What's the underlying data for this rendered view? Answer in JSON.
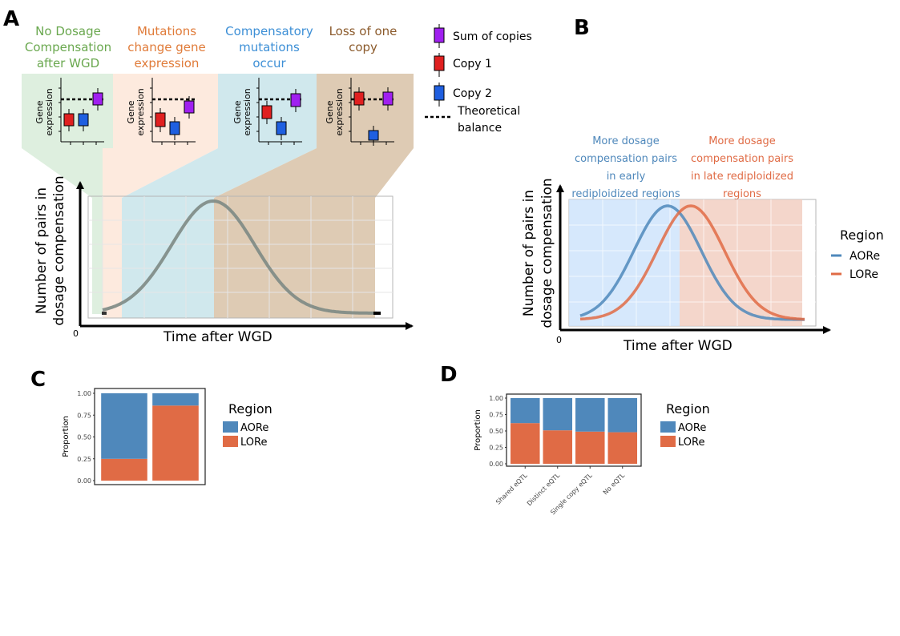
{
  "colors": {
    "green": "#6aa84f",
    "orange": "#e07b39",
    "blue": "#3d8fd6",
    "brown": "#8b5a2b",
    "purple": "#a020f0",
    "red": "#e02020",
    "cblue": "#1f5fe0",
    "aore": "#4f88bb",
    "lore": "#e06b45"
  },
  "panel_a": {
    "letter": "A",
    "headers": [
      {
        "lines": [
          "No Dosage",
          "Compensation",
          "after WGD"
        ],
        "color": "#6aa84f"
      },
      {
        "lines": [
          "Mutations",
          "change gene",
          "expression"
        ],
        "color": "#e07b39"
      },
      {
        "lines": [
          "Compensatory",
          "mutations",
          "occur"
        ],
        "color": "#3d8fd6"
      },
      {
        "lines": [
          "Loss of one",
          "copy"
        ],
        "color": "#8b5a2b"
      }
    ],
    "gene_expression_label": [
      "Gene",
      "expression"
    ],
    "legend": {
      "sum": "Sum of copies",
      "copy1": "Copy 1",
      "copy2": "Copy 2",
      "balance": [
        "Theoretical",
        "balance"
      ]
    },
    "ylabel": [
      "Number of pairs in",
      "dosage compensation"
    ],
    "xlabel": "Time after WGD",
    "origin": "0"
  },
  "panel_b": {
    "letter": "B",
    "annotation_left": [
      "More dosage",
      "compensation pairs",
      "in early",
      "rediploidized regions"
    ],
    "annotation_right": [
      "More dosage",
      "compensation pairs",
      "in late rediploidized",
      "regions"
    ],
    "ylabel": [
      "Number of pairs in",
      "dosage compensation"
    ],
    "xlabel": "Time after WGD",
    "origin": "0",
    "legend_title": "Region",
    "legend_items": [
      "AORe",
      "LORe"
    ]
  },
  "panel_c": {
    "letter": "C",
    "legend_title": "Region",
    "legend_items": [
      "AORe",
      "LORe"
    ]
  },
  "panel_d": {
    "letter": "D",
    "legend_title": "Region",
    "legend_items": [
      "AORe",
      "LORe"
    ]
  },
  "chart_data": [
    {
      "type": "bar",
      "panel": "C",
      "stacked": true,
      "ylabel": "Proportion",
      "xlabel": "",
      "categories": [
        "",
        ""
      ],
      "yticks": [
        "0.00",
        "0.25",
        "0.50",
        "0.75",
        "1.00"
      ],
      "ylim": [
        0,
        1
      ],
      "series": [
        {
          "name": "LORe",
          "values": [
            0.25,
            0.86
          ]
        },
        {
          "name": "AORe",
          "values": [
            0.75,
            0.14
          ]
        }
      ]
    },
    {
      "type": "bar",
      "panel": "D",
      "stacked": true,
      "ylabel": "Proportion",
      "xlabel": "",
      "categories": [
        "Shared eQTL",
        "Distinct eQTL",
        "Single copy eQTL",
        "No eQTL"
      ],
      "yticks": [
        "0.00",
        "0.25",
        "0.50",
        "0.75",
        "1.00"
      ],
      "ylim": [
        0,
        1
      ],
      "series": [
        {
          "name": "LORe",
          "values": [
            0.62,
            0.51,
            0.49,
            0.48
          ]
        },
        {
          "name": "AORe",
          "values": [
            0.38,
            0.49,
            0.51,
            0.52
          ]
        }
      ]
    }
  ]
}
